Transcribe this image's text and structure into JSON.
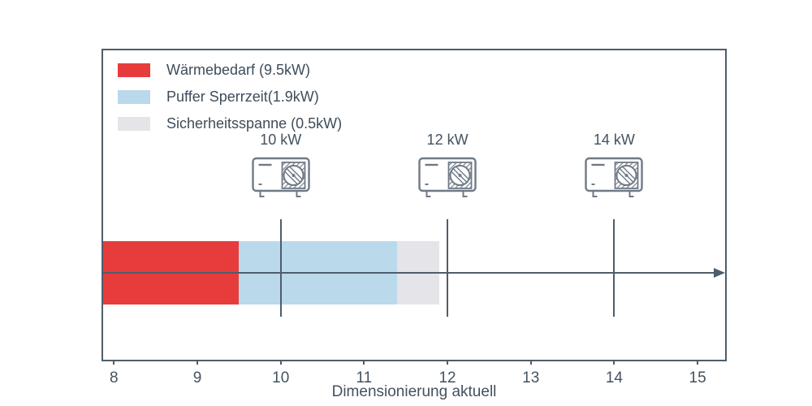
{
  "chart_data": {
    "type": "bar",
    "orientation": "horizontal-stacked",
    "title": "",
    "xlabel": "Dimensionierung aktuell",
    "ylabel": "",
    "xlim": [
      7.87,
      15.33
    ],
    "xticks": [
      "8",
      "9",
      "10",
      "11",
      "12",
      "13",
      "14",
      "15"
    ],
    "grid": false,
    "legend_position": "upper-left-inside",
    "axis_color": "#4e5d6c",
    "icon_color": "#6f7a86",
    "bar": {
      "start": 7.87,
      "segments": [
        {
          "name": "waermebedarf",
          "label": "Wärmebedarf (9.5kW)",
          "end": 9.5,
          "color": "#e63c3c"
        },
        {
          "name": "puffer-sperrzeit",
          "label": "Puffer Sperrzeit(1.9kW)",
          "end": 11.4,
          "color": "#bad9ea"
        },
        {
          "name": "sicherheitsspanne",
          "label": "Sicherheitsspanne (0.5kW)",
          "end": 11.9,
          "color": "#e4e4e9"
        }
      ]
    },
    "markers": [
      {
        "value": 10,
        "label": "10 kW",
        "icon": "heat-pump-icon"
      },
      {
        "value": 12,
        "label": "12 kW",
        "icon": "heat-pump-icon"
      },
      {
        "value": 14,
        "label": "14 kW",
        "icon": "heat-pump-icon"
      }
    ],
    "arrow": {
      "y_value": "bar-center",
      "direction": "right"
    }
  }
}
